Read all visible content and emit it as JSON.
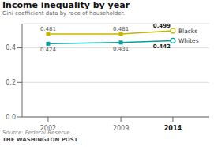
{
  "chart_data": {
    "type": "line",
    "title": "Income inequality by year",
    "subtitle": "Gini coefficient data by race of householder.",
    "annotations": [
      "Source: Federal Reserve",
      "THE WASHINGTON POST"
    ],
    "x": [
      2002,
      2009,
      2014
    ],
    "series": [
      {
        "name": "Blacks",
        "color": "#c8b400",
        "values": [
          0.481,
          0.481,
          0.499
        ],
        "marker": "square"
      },
      {
        "name": "Whites",
        "color": "#00a0a0",
        "values": [
          0.424,
          0.431,
          0.442
        ],
        "marker": "square"
      }
    ],
    "xlim": [
      1999.5,
      2017.5
    ],
    "xticks": [
      2002,
      2009,
      2014
    ],
    "ylim": [
      0.0,
      0.54
    ],
    "yticks": [
      {
        "value": 0.0,
        "label": "0.0"
      },
      0.2,
      0.4
    ],
    "grid": true,
    "data_labels": true
  }
}
